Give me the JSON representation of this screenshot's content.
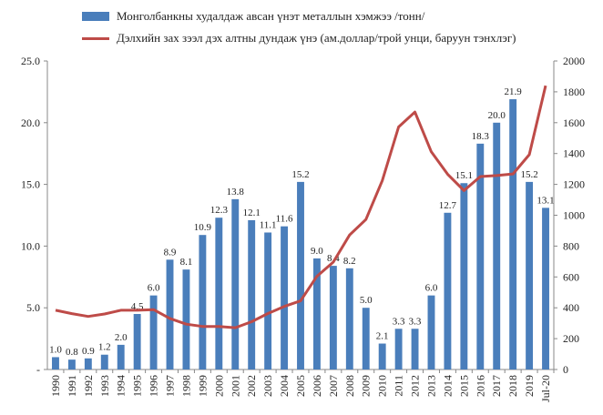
{
  "chart_data": {
    "type": "bar+line",
    "title": "",
    "categories": [
      "1990",
      "1991",
      "1992",
      "1993",
      "1994",
      "1995",
      "1996",
      "1997",
      "1998",
      "1999",
      "2000",
      "2001",
      "2002",
      "2003",
      "2004",
      "2005",
      "2006",
      "2007",
      "2008",
      "2009",
      "2010",
      "2011",
      "2012",
      "2013",
      "2014",
      "2015",
      "2016",
      "2017",
      "2018",
      "2019",
      "Jul-20"
    ],
    "series": [
      {
        "name": "Монголбанкны худалдаж авсан үнэт металлын хэмжээ /тонн/",
        "kind": "bar",
        "axis": "left",
        "color": "#4a7ebb",
        "values": [
          1.0,
          0.8,
          0.9,
          1.2,
          2.0,
          4.5,
          6.0,
          8.9,
          8.1,
          10.9,
          12.3,
          13.8,
          12.1,
          11.1,
          11.6,
          15.2,
          9.0,
          8.4,
          8.2,
          5.0,
          2.1,
          3.3,
          3.3,
          6.0,
          12.7,
          15.1,
          18.3,
          20.0,
          21.9,
          15.2,
          13.1
        ],
        "labels": [
          "1.0",
          "0.8",
          "0.9",
          "1.2",
          "2.0",
          "4.5",
          "6.0",
          "8.9",
          "8.1",
          "10.9",
          "12.3",
          "13.8",
          "12.1",
          "11.1",
          "11.6",
          "15.2",
          "9.0",
          "8.4",
          "8.2",
          "5.0",
          "2.1",
          "3.3",
          "3.3",
          "6.0",
          "12.7",
          "15.1",
          "18.3",
          "20.0",
          "21.9",
          "15.2",
          "13.1"
        ]
      },
      {
        "name": "Дэлхийн зах зээл дэх алтны дундаж үнэ (ам.доллар/трой унци, баруун тэнхлэг)",
        "kind": "line",
        "axis": "right",
        "color": "#be4b48",
        "values": [
          384,
          362,
          344,
          360,
          384,
          384,
          388,
          331,
          294,
          279,
          279,
          271,
          310,
          363,
          409,
          445,
          604,
          696,
          872,
          972,
          1225,
          1572,
          1669,
          1411,
          1266,
          1160,
          1251,
          1257,
          1268,
          1393,
          1840
        ]
      }
    ],
    "y_left": {
      "min": 0,
      "max": 25,
      "ticks": [
        "-",
        "5.0",
        "10.0",
        "15.0",
        "20.0",
        "25.0"
      ]
    },
    "y_right": {
      "min": 0,
      "max": 2000,
      "ticks": [
        "0",
        "200",
        "400",
        "600",
        "800",
        "1000",
        "1200",
        "1400",
        "1600",
        "1800",
        "2000"
      ]
    },
    "legend_position": "top"
  }
}
